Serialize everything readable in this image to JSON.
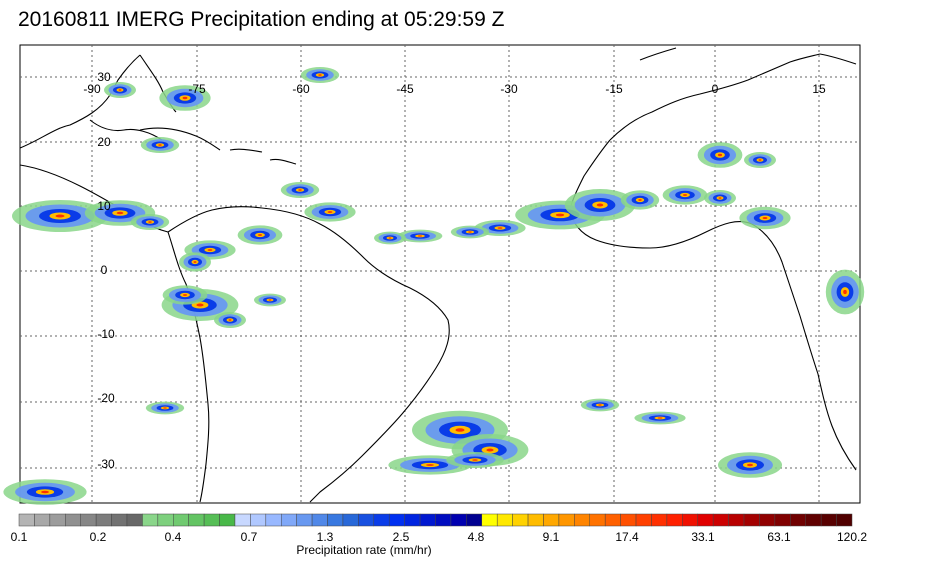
{
  "title": "20160811 IMERG Precipitation ending at 05:29:59 Z",
  "map": {
    "longitude_labels": [
      "-90",
      "-75",
      "-60",
      "-45",
      "-30",
      "-15",
      "0",
      "15"
    ],
    "latitude_labels": [
      "30",
      "20",
      "10",
      "0",
      "-10",
      "-20",
      "-30"
    ],
    "gridlines": true
  },
  "colorbar": {
    "tick_labels": [
      "0.1",
      "0.2",
      "0.4",
      "0.7",
      "1.3",
      "2.5",
      "4.8",
      "9.1",
      "17.4",
      "33.1",
      "63.1",
      "120.2"
    ],
    "label": "Precipitation rate (mm/hr)",
    "colors": [
      "#b4b4b4",
      "#a8a8a8",
      "#9c9c9c",
      "#909090",
      "#868686",
      "#7c7c7c",
      "#727272",
      "#686868",
      "#8ad68a",
      "#7dd07d",
      "#70ca70",
      "#63c463",
      "#56be56",
      "#49b849",
      "#c8d8ff",
      "#b0c8ff",
      "#98b8ff",
      "#80a8f8",
      "#6898f0",
      "#5088e8",
      "#3878e0",
      "#2868d8",
      "#1850e0",
      "#0a3ce8",
      "#0030f0",
      "#0024e0",
      "#0018d0",
      "#000cc0",
      "#0000b0",
      "#000090",
      "#ffff00",
      "#ffe800",
      "#ffd200",
      "#ffbc00",
      "#ffa800",
      "#ff9600",
      "#ff8400",
      "#ff7200",
      "#ff6000",
      "#ff5000",
      "#ff4000",
      "#ff3000",
      "#ff2000",
      "#f01000",
      "#e00000",
      "#cc0000",
      "#b80000",
      "#a40000",
      "#900000",
      "#800000",
      "#700000",
      "#600000",
      "#580000",
      "#500000"
    ]
  }
}
